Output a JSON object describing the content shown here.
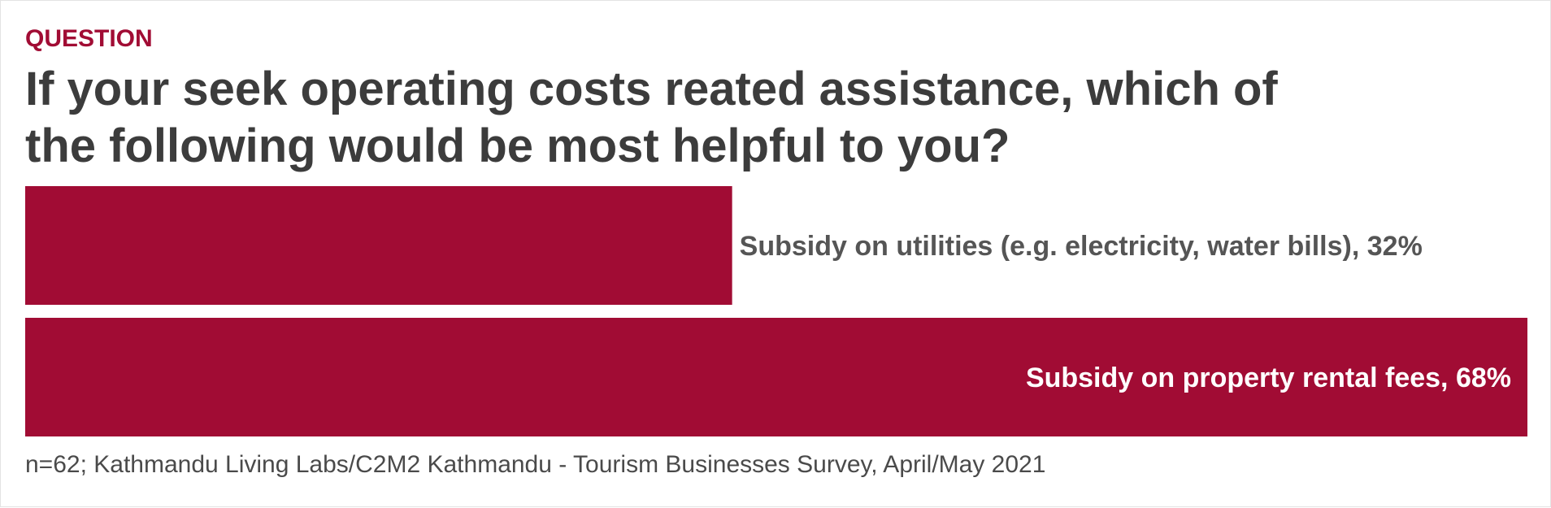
{
  "eyebrow": "QUESTION",
  "title": "If your seek operating costs reated assistance, which of the following would be most helpful to you?",
  "footnote": "n=62; Kathmandu Living Labs/C2M2 Kathmandu - Tourism Businesses Survey, April/May 2021",
  "colors": {
    "bar": "#a10c34",
    "label_outside": "#555555",
    "label_inside": "#ffffff",
    "title": "#3c3c3c",
    "eyebrow": "#a10c34"
  },
  "chart_data": {
    "type": "bar",
    "orientation": "horizontal",
    "categories": [
      "Subsidy on utilities (e.g. electricity, water bills)",
      "Subsidy on property rental fees"
    ],
    "values": [
      32,
      68
    ],
    "value_suffix": "%",
    "data_labels": [
      "Subsidy on utilities (e.g. electricity, water bills), 32%",
      "Subsidy on property rental fees, 68%"
    ],
    "xlim": [
      0,
      68
    ],
    "grid": false,
    "legend": "none"
  }
}
